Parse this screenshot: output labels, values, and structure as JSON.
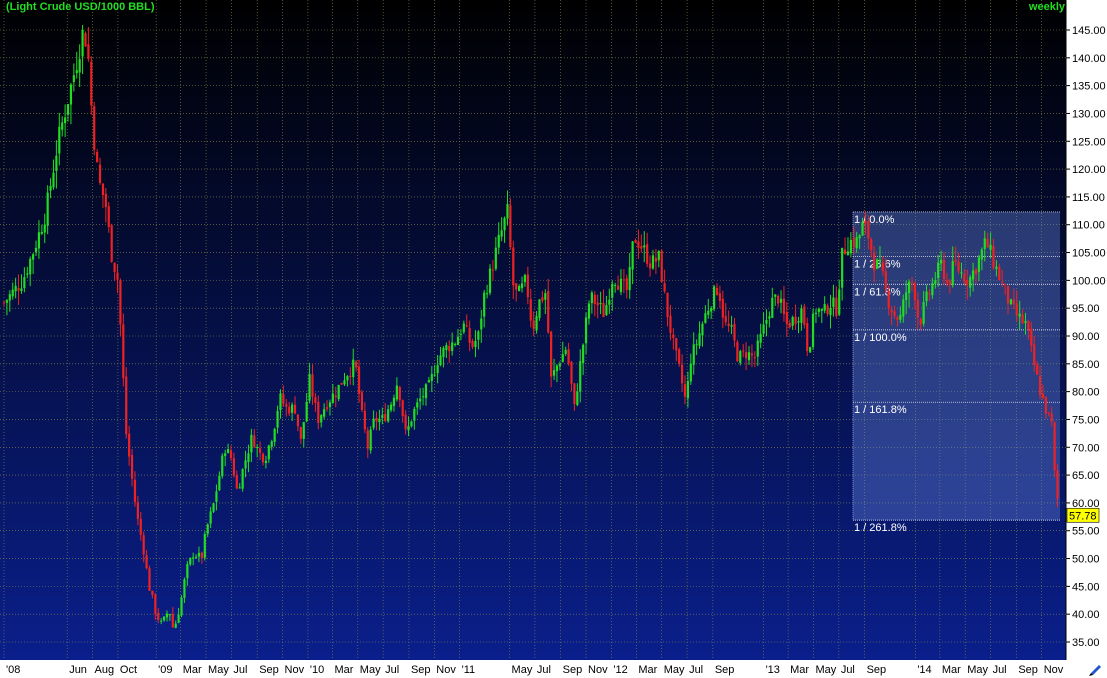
{
  "header": {
    "title": "(Light Crude USD/1000 BBL)",
    "period": "weekly"
  },
  "colors": {
    "bg_top": "#000000",
    "bg_bottom": "#0a1f8c",
    "up": "#22dd22",
    "down": "#ee2222",
    "grid": "#8a8a4a",
    "axis_bg": "#ffffff",
    "last_price_bg": "#ffff00",
    "fib_fill": "#6a8ae0"
  },
  "chart_data": {
    "type": "candlestick",
    "title": "(Light Crude USD/1000 BBL)",
    "frequency": "weekly",
    "ylim": [
      31,
      148
    ],
    "y_ticks": [
      "145.00",
      "140.00",
      "135.00",
      "130.00",
      "125.00",
      "120.00",
      "115.00",
      "110.00",
      "105.00",
      "100.00",
      "95.00",
      "90.00",
      "85.00",
      "80.00",
      "75.00",
      "70.00",
      "65.00",
      "60.00",
      "55.00",
      "50.00",
      "45.00",
      "40.00",
      "35.00"
    ],
    "x_ticks": [
      "'08",
      "Jun",
      "Aug",
      "Oct",
      "'09",
      "Mar",
      "May",
      "Jul",
      "Sep",
      "Nov",
      "'10",
      "Mar",
      "May",
      "Jul",
      "Sep",
      "Nov",
      "'11",
      "May",
      "Jul",
      "Sep",
      "Nov",
      "'12",
      "Mar",
      "May",
      "Jul",
      "Sep",
      "'13",
      "Mar",
      "May",
      "Jul",
      "Sep",
      "'14",
      "Mar",
      "May",
      "Jul",
      "Sep",
      "Nov"
    ],
    "last_price": "57.78",
    "fibonacci": [
      {
        "label": "1 / 0.0%",
        "price": 112.3
      },
      {
        "label": "1 / 23.6%",
        "price": 104.3
      },
      {
        "label": "1 / 61.8%",
        "price": 99.3
      },
      {
        "label": "1 / 100.0%",
        "price": 91.1
      },
      {
        "label": "1 / 161.8%",
        "price": 78.1
      },
      {
        "label": "1 / 261.8%",
        "price": 56.9
      }
    ],
    "path": [
      [
        "2008-01-01",
        96
      ],
      [
        "2008-02-15",
        100
      ],
      [
        "2008-03-15",
        106
      ],
      [
        "2008-04-10",
        112
      ],
      [
        "2008-05-10",
        125
      ],
      [
        "2008-06-01",
        132
      ],
      [
        "2008-06-20",
        138
      ],
      [
        "2008-07-10",
        145
      ],
      [
        "2008-07-20",
        142
      ],
      [
        "2008-08-01",
        128
      ],
      [
        "2008-08-15",
        118
      ],
      [
        "2008-09-01",
        114
      ],
      [
        "2008-09-15",
        105
      ],
      [
        "2008-10-01",
        100
      ],
      [
        "2008-10-10",
        88
      ],
      [
        "2008-10-20",
        73
      ],
      [
        "2008-11-01",
        66
      ],
      [
        "2008-11-15",
        58
      ],
      [
        "2008-12-01",
        52
      ],
      [
        "2008-12-15",
        45
      ],
      [
        "2009-01-01",
        40
      ],
      [
        "2009-01-15",
        38
      ],
      [
        "2009-02-01",
        41
      ],
      [
        "2009-02-12",
        37
      ],
      [
        "2009-03-01",
        42
      ],
      [
        "2009-03-15",
        48
      ],
      [
        "2009-04-01",
        51
      ],
      [
        "2009-04-20",
        50
      ],
      [
        "2009-05-01",
        55
      ],
      [
        "2009-05-20",
        60
      ],
      [
        "2009-06-15",
        70
      ],
      [
        "2009-07-01",
        68
      ],
      [
        "2009-07-15",
        62
      ],
      [
        "2009-08-01",
        67
      ],
      [
        "2009-08-20",
        72
      ],
      [
        "2009-09-05",
        69
      ],
      [
        "2009-09-20",
        68
      ],
      [
        "2009-10-10",
        73
      ],
      [
        "2009-10-25",
        79
      ],
      [
        "2009-11-10",
        77
      ],
      [
        "2009-12-01",
        77
      ],
      [
        "2009-12-15",
        71
      ],
      [
        "2010-01-05",
        82
      ],
      [
        "2010-01-25",
        75
      ],
      [
        "2010-02-15",
        78
      ],
      [
        "2010-03-10",
        80
      ],
      [
        "2010-04-01",
        83
      ],
      [
        "2010-04-25",
        85
      ],
      [
        "2010-05-10",
        76
      ],
      [
        "2010-05-25",
        70
      ],
      [
        "2010-06-10",
        75
      ],
      [
        "2010-07-01",
        75
      ],
      [
        "2010-07-20",
        78
      ],
      [
        "2010-08-05",
        82
      ],
      [
        "2010-08-25",
        72
      ],
      [
        "2010-09-10",
        76
      ],
      [
        "2010-10-01",
        79
      ],
      [
        "2010-10-20",
        81
      ],
      [
        "2010-11-10",
        86
      ],
      [
        "2010-12-01",
        88
      ],
      [
        "2010-12-20",
        89
      ],
      [
        "2011-01-10",
        92
      ],
      [
        "2011-01-30",
        88
      ],
      [
        "2011-02-15",
        90
      ],
      [
        "2011-02-28",
        97
      ],
      [
        "2011-03-15",
        101
      ],
      [
        "2011-04-05",
        107
      ],
      [
        "2011-04-29",
        113
      ],
      [
        "2011-05-06",
        100
      ],
      [
        "2011-05-20",
        97
      ],
      [
        "2011-06-10",
        100
      ],
      [
        "2011-06-25",
        91
      ],
      [
        "2011-07-10",
        96
      ],
      [
        "2011-07-28",
        98
      ],
      [
        "2011-08-08",
        82
      ],
      [
        "2011-08-25",
        85
      ],
      [
        "2011-09-15",
        88
      ],
      [
        "2011-10-04",
        77
      ],
      [
        "2011-10-20",
        86
      ],
      [
        "2011-11-10",
        97
      ],
      [
        "2011-11-25",
        96
      ],
      [
        "2011-12-15",
        94
      ],
      [
        "2012-01-05",
        101
      ],
      [
        "2012-01-25",
        99
      ],
      [
        "2012-02-10",
        98
      ],
      [
        "2012-02-24",
        108
      ],
      [
        "2012-03-15",
        106
      ],
      [
        "2012-04-05",
        103
      ],
      [
        "2012-04-25",
        104
      ],
      [
        "2012-05-10",
        96
      ],
      [
        "2012-05-30",
        88
      ],
      [
        "2012-06-15",
        83
      ],
      [
        "2012-06-28",
        78
      ],
      [
        "2012-07-10",
        86
      ],
      [
        "2012-07-25",
        89
      ],
      [
        "2012-08-10",
        93
      ],
      [
        "2012-08-25",
        96
      ],
      [
        "2012-09-14",
        99
      ],
      [
        "2012-09-30",
        92
      ],
      [
        "2012-10-15",
        91
      ],
      [
        "2012-11-01",
        86
      ],
      [
        "2012-11-20",
        87
      ],
      [
        "2012-12-10",
        86
      ],
      [
        "2012-12-31",
        91
      ],
      [
        "2013-01-20",
        96
      ],
      [
        "2013-02-05",
        97
      ],
      [
        "2013-02-25",
        92
      ],
      [
        "2013-03-15",
        93
      ],
      [
        "2013-04-05",
        95
      ],
      [
        "2013-04-18",
        87
      ],
      [
        "2013-05-05",
        95
      ],
      [
        "2013-05-25",
        94
      ],
      [
        "2013-06-10",
        96
      ],
      [
        "2013-06-25",
        95
      ],
      [
        "2013-07-10",
        105
      ],
      [
        "2013-07-25",
        107
      ],
      [
        "2013-08-15",
        107
      ],
      [
        "2013-08-28",
        110
      ],
      [
        "2013-09-10",
        108
      ],
      [
        "2013-09-25",
        103
      ],
      [
        "2013-10-10",
        102
      ],
      [
        "2013-10-25",
        97
      ],
      [
        "2013-11-10",
        94
      ],
      [
        "2013-11-25",
        93
      ],
      [
        "2013-12-10",
        98
      ],
      [
        "2013-12-27",
        100
      ],
      [
        "2014-01-10",
        92
      ],
      [
        "2014-01-25",
        96
      ],
      [
        "2014-02-15",
        100
      ],
      [
        "2014-03-05",
        103
      ],
      [
        "2014-03-20",
        99
      ],
      [
        "2014-04-05",
        103
      ],
      [
        "2014-04-25",
        101
      ],
      [
        "2014-05-10",
        100
      ],
      [
        "2014-05-30",
        103
      ],
      [
        "2014-06-20",
        107
      ],
      [
        "2014-07-05",
        104
      ],
      [
        "2014-07-20",
        101
      ],
      [
        "2014-08-05",
        98
      ],
      [
        "2014-08-20",
        95
      ],
      [
        "2014-09-10",
        93
      ],
      [
        "2014-09-25",
        92
      ],
      [
        "2014-10-10",
        86
      ],
      [
        "2014-10-25",
        81
      ],
      [
        "2014-11-10",
        77
      ],
      [
        "2014-11-25",
        74
      ],
      [
        "2014-12-01",
        66
      ],
      [
        "2014-12-10",
        60
      ],
      [
        "2014-12-15",
        57.8
      ]
    ]
  }
}
